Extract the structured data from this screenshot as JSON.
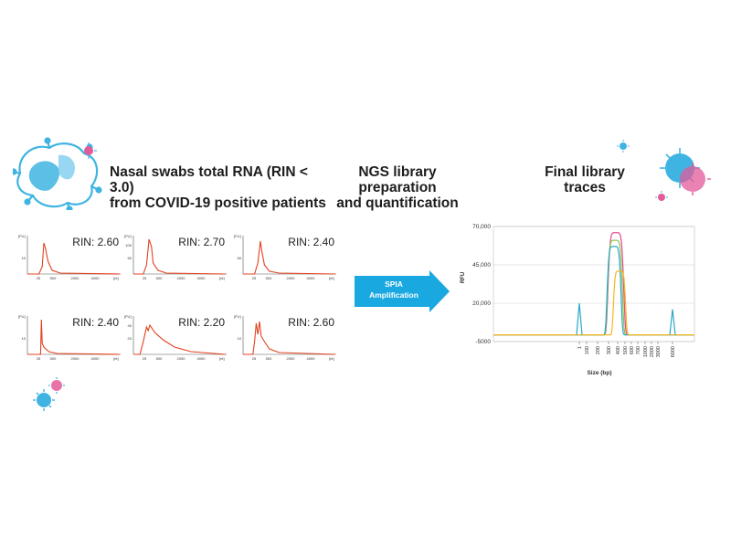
{
  "headings": {
    "left_line1": "Nasal swabs total RNA (RIN < 3.0)",
    "left_line2": "from COVID-19 positive patients",
    "middle_line1": "NGS library",
    "middle_line2": "preparation",
    "middle_line3": "and quantification",
    "right_line1": "Final library",
    "right_line2": "traces"
  },
  "arrow": {
    "line1": "SPIA",
    "line2": "Amplification",
    "color": "#1aa8e0"
  },
  "colors": {
    "trace_red": "#e2401e",
    "virus_blue": "#3fb4e2",
    "virus_pink": "#e35a9a"
  },
  "rin_panels": [
    {
      "rin": "RIN: 2.60",
      "y_unit": "[FU]",
      "x_unit": "[nt]",
      "y_ticks": [
        "10"
      ],
      "x_ticks": [
        "25",
        "500",
        "2000",
        "4000"
      ],
      "trace": "sharp-low"
    },
    {
      "rin": "RIN: 2.70",
      "y_unit": "[FU]",
      "x_unit": "[nt]",
      "y_ticks": [
        "100",
        "50"
      ],
      "x_ticks": [
        "25",
        "500",
        "2000",
        "4000"
      ],
      "trace": "sharp"
    },
    {
      "rin": "RIN: 2.40",
      "y_unit": "[FU]",
      "x_unit": "[nt]",
      "y_ticks": [
        "50"
      ],
      "x_ticks": [
        "25",
        "500",
        "2000",
        "4000"
      ],
      "trace": "sharp-mid"
    },
    {
      "rin": "RIN: 2.40",
      "y_unit": "[FU]",
      "x_unit": "[nt]",
      "y_ticks": [
        "10"
      ],
      "x_ticks": [
        "25",
        "500",
        "2000",
        "4000"
      ],
      "trace": "spike"
    },
    {
      "rin": "RIN: 2.20",
      "y_unit": "[FU]",
      "x_unit": "[nt]",
      "y_ticks": [
        "40",
        "20"
      ],
      "x_ticks": [
        "25",
        "500",
        "2000",
        "4000"
      ],
      "trace": "broad"
    },
    {
      "rin": "RIN: 2.60",
      "y_unit": "[FU]",
      "x_unit": "[nt]",
      "y_ticks": [
        "10"
      ],
      "x_ticks": [
        "25",
        "500",
        "2000",
        "4000"
      ],
      "trace": "jagged"
    }
  ],
  "chart_data": {
    "type": "line",
    "title": "",
    "xlabel": "Size (bp)",
    "ylabel": "RFU",
    "y_ticks": [
      "70,000",
      "45,000",
      "20,000",
      "-5000"
    ],
    "x_ticks": [
      "1",
      "100",
      "200",
      "300",
      "400",
      "500",
      "600",
      "700",
      "1000",
      "2000",
      "3000",
      "6000"
    ],
    "ylim": [
      -5000,
      70000
    ],
    "grid": true,
    "series": [
      {
        "color": "#e6478f",
        "peak": 66000
      },
      {
        "color": "#8bc44a",
        "peak": 61000
      },
      {
        "color": "#28a9c6",
        "peak": 57000
      },
      {
        "color": "#f5b81f",
        "peak": 41000
      }
    ],
    "marker_peaks": [
      {
        "position": "1",
        "value": 20000
      },
      {
        "position": "6000",
        "value": 16000
      }
    ]
  }
}
